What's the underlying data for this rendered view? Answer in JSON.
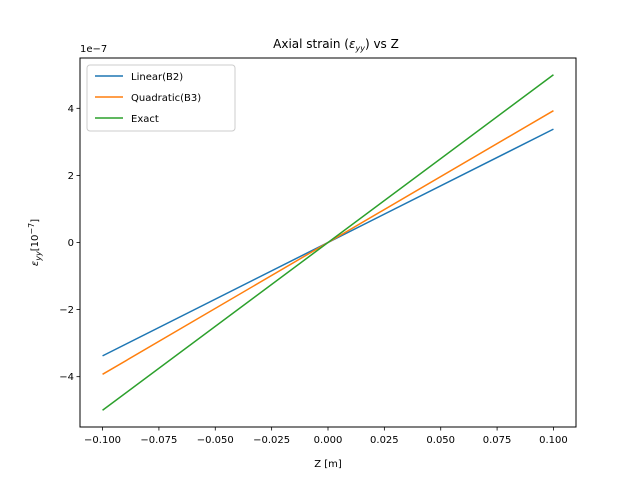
{
  "chart_data": {
    "type": "line",
    "title": "Axial strain (",
    "title_math": "ε",
    "title_math_sub": "yy",
    "title_suffix": ") vs Z",
    "xlabel": "Z [m]",
    "ylabel_math": "ε",
    "ylabel_math_sub": "yy",
    "ylabel_unit": "[10",
    "ylabel_unit_sup": "−7",
    "ylabel_unit_close": "]",
    "y_offset_text": "1e−7",
    "y_scale": 1e-07,
    "xlim": [
      -0.11,
      0.11
    ],
    "ylim": [
      -5.5,
      5.5
    ],
    "x_ticks": [
      -0.1,
      -0.075,
      -0.05,
      -0.025,
      0.0,
      0.025,
      0.05,
      0.075,
      0.1
    ],
    "x_tick_labels": [
      "−0.100",
      "−0.075",
      "−0.050",
      "−0.025",
      "0.000",
      "0.025",
      "0.050",
      "0.075",
      "0.100"
    ],
    "y_ticks": [
      -4,
      -2,
      0,
      2,
      4
    ],
    "y_tick_labels": [
      "−4",
      "−2",
      "0",
      "2",
      "4"
    ],
    "grid": false,
    "legend_position": "top-left",
    "series": [
      {
        "name": "Linear(B2)",
        "color": "#1f77b4",
        "x": [
          -0.1,
          0.1
        ],
        "y": [
          -3.38,
          3.38
        ]
      },
      {
        "name": "Quadratic(B3)",
        "color": "#ff7f0e",
        "x": [
          -0.1,
          0.1
        ],
        "y": [
          -3.93,
          3.93
        ]
      },
      {
        "name": "Exact",
        "color": "#2ca02c",
        "x": [
          -0.1,
          0.1
        ],
        "y": [
          -5.0,
          5.0
        ]
      }
    ]
  }
}
